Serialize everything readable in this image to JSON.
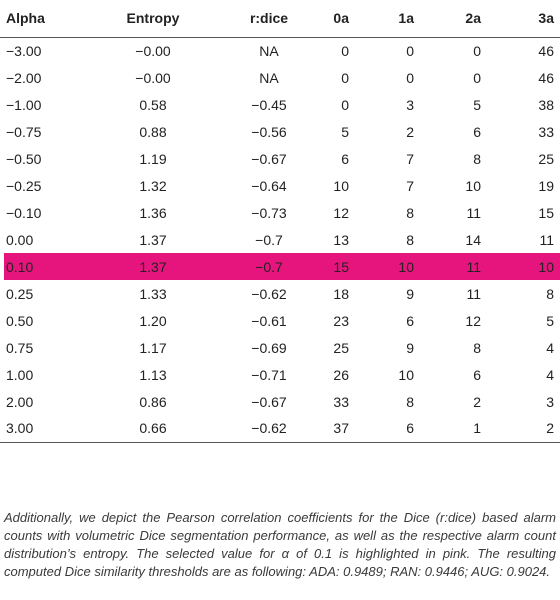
{
  "table": {
    "headers": [
      "Alpha",
      "Entropy",
      "r:dice",
      "0a",
      "1a",
      "2a",
      "3a"
    ],
    "rows": [
      [
        "−3.00",
        "−0.00",
        "NA",
        "0",
        "0",
        "0",
        "46"
      ],
      [
        "−2.00",
        "−0.00",
        "NA",
        "0",
        "0",
        "0",
        "46"
      ],
      [
        "−1.00",
        "0.58",
        "−0.45",
        "0",
        "3",
        "5",
        "38"
      ],
      [
        "−0.75",
        "0.88",
        "−0.56",
        "5",
        "2",
        "6",
        "33"
      ],
      [
        "−0.50",
        "1.19",
        "−0.67",
        "6",
        "7",
        "8",
        "25"
      ],
      [
        "−0.25",
        "1.32",
        "−0.64",
        "10",
        "7",
        "10",
        "19"
      ],
      [
        "−0.10",
        "1.36",
        "−0.73",
        "12",
        "8",
        "11",
        "15"
      ],
      [
        "0.00",
        "1.37",
        "−0.7",
        "13",
        "8",
        "14",
        "11"
      ],
      [
        "0.10",
        "1.37",
        "−0.7",
        "15",
        "10",
        "11",
        "10"
      ],
      [
        "0.25",
        "1.33",
        "−0.62",
        "18",
        "9",
        "11",
        "8"
      ],
      [
        "0.50",
        "1.20",
        "−0.61",
        "23",
        "6",
        "12",
        "5"
      ],
      [
        "0.75",
        "1.17",
        "−0.69",
        "25",
        "9",
        "8",
        "4"
      ],
      [
        "1.00",
        "1.13",
        "−0.71",
        "26",
        "10",
        "6",
        "4"
      ],
      [
        "2.00",
        "0.86",
        "−0.67",
        "33",
        "8",
        "2",
        "3"
      ],
      [
        "3.00",
        "0.66",
        "−0.62",
        "37",
        "6",
        "1",
        "2"
      ]
    ],
    "highlight_row_alpha": "0.10",
    "highlight_color": "#e5157d"
  },
  "caption": "Additionally, we depict the Pearson correlation coefficients for the Dice (r:dice) based alarm counts with volumetric Dice segmentation performance, as well as the respective alarm count distribution’s entropy. The selected value for α of 0.1 is highlighted in pink. The resulting computed Dice similarity thresholds are as following: ADA: 0.9489; RAN: 0.9446; AUG: 0.9024."
}
